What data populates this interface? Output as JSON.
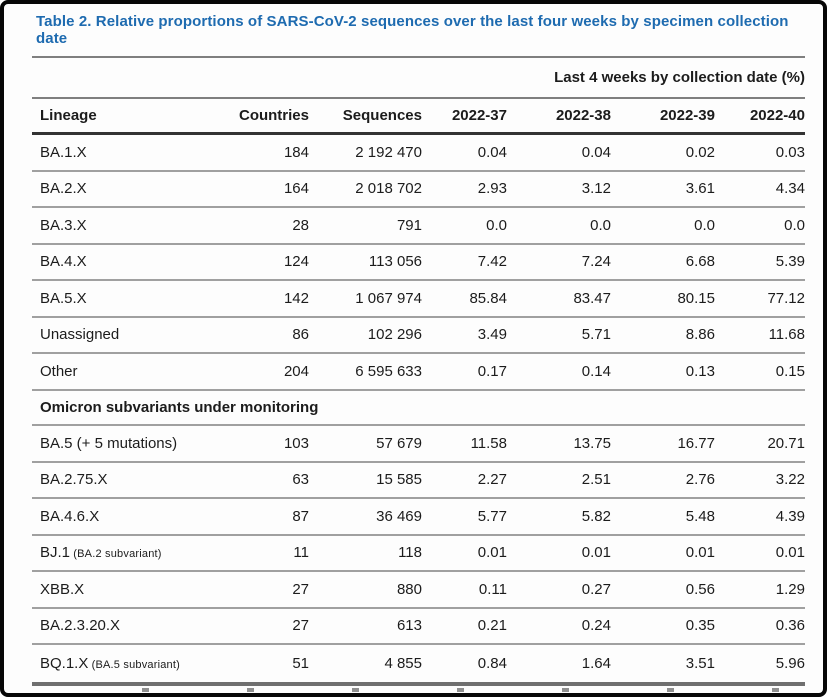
{
  "title": "Table 2. Relative proportions of SARS-CoV-2 sequences over the last four weeks by specimen collection date",
  "table": {
    "group_header": "Last 4 weeks by collection date (%)",
    "columns": [
      "Lineage",
      "Countries",
      "Sequences",
      "2022-37",
      "2022-38",
      "2022-39",
      "2022-40"
    ],
    "rows": [
      {
        "lineage": "BA.1.X",
        "note": "",
        "countries": "184",
        "sequences": "2 192 470",
        "weeks": [
          "0.04",
          "0.04",
          "0.02",
          "0.03"
        ]
      },
      {
        "lineage": "BA.2.X",
        "note": "",
        "countries": "164",
        "sequences": "2 018 702",
        "weeks": [
          "2.93",
          "3.12",
          "3.61",
          "4.34"
        ]
      },
      {
        "lineage": "BA.3.X",
        "note": "",
        "countries": "28",
        "sequences": "791",
        "weeks": [
          "0.0",
          "0.0",
          "0.0",
          "0.0"
        ]
      },
      {
        "lineage": "BA.4.X",
        "note": "",
        "countries": "124",
        "sequences": "113 056",
        "weeks": [
          "7.42",
          "7.24",
          "6.68",
          "5.39"
        ]
      },
      {
        "lineage": "BA.5.X",
        "note": "",
        "countries": "142",
        "sequences": "1 067 974",
        "weeks": [
          "85.84",
          "83.47",
          "80.15",
          "77.12"
        ]
      },
      {
        "lineage": "Unassigned",
        "note": "",
        "countries": "86",
        "sequences": "102 296",
        "weeks": [
          "3.49",
          "5.71",
          "8.86",
          "11.68"
        ]
      },
      {
        "lineage": "Other",
        "note": "",
        "countries": "204",
        "sequences": "6 595 633",
        "weeks": [
          "0.17",
          "0.14",
          "0.13",
          "0.15"
        ]
      }
    ],
    "section_header": "Omicron subvariants under monitoring",
    "section_rows": [
      {
        "lineage": "BA.5 (+ 5 mutations)",
        "note": "",
        "countries": "103",
        "sequences": "57 679",
        "weeks": [
          "11.58",
          "13.75",
          "16.77",
          "20.71"
        ]
      },
      {
        "lineage": "BA.2.75.X",
        "note": "",
        "countries": "63",
        "sequences": "15 585",
        "weeks": [
          "2.27",
          "2.51",
          "2.76",
          "3.22"
        ]
      },
      {
        "lineage": "BA.4.6.X",
        "note": "",
        "countries": "87",
        "sequences": "36 469",
        "weeks": [
          "5.77",
          "5.82",
          "5.48",
          "4.39"
        ]
      },
      {
        "lineage": "BJ.1",
        "note": "(BA.2 subvariant)",
        "countries": "11",
        "sequences": "118",
        "weeks": [
          "0.01",
          "0.01",
          "0.01",
          "0.01"
        ]
      },
      {
        "lineage": "XBB.X",
        "note": "",
        "countries": "27",
        "sequences": "880",
        "weeks": [
          "0.11",
          "0.27",
          "0.56",
          "1.29"
        ]
      },
      {
        "lineage": "BA.2.3.20.X",
        "note": "",
        "countries": "27",
        "sequences": "613",
        "weeks": [
          "0.21",
          "0.24",
          "0.35",
          "0.36"
        ]
      },
      {
        "lineage": "BQ.1.X",
        "note": "(BA.5 subvariant)",
        "countries": "51",
        "sequences": "4 855",
        "weeks": [
          "0.84",
          "1.64",
          "3.51",
          "5.96"
        ]
      }
    ]
  },
  "colors": {
    "title_blue": "#1e6bb0",
    "rule_gray": "#7f7f7f",
    "row_separator": "#a0a0a0",
    "header_rule_dark": "#333333",
    "bottom_rule": "#6f6f6f",
    "text": "#1c1c1c"
  }
}
